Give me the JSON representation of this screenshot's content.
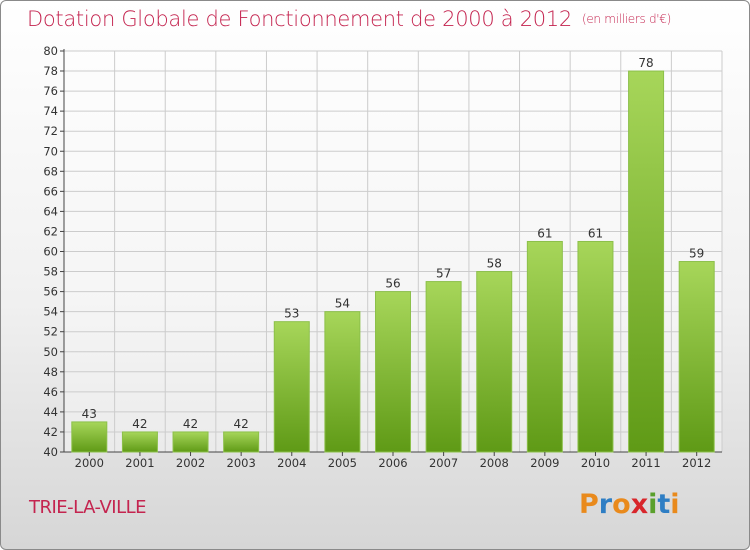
{
  "title": "Dotation Globale de Fonctionnement de 2000 à 2012",
  "unit": "(en milliers d'€)",
  "commune": "TRIE-LA-VILLE",
  "logo": {
    "text": "Proxiti",
    "letter_colors": [
      "#e98a1c",
      "#2e7ec4",
      "#e98a1c",
      "#d8262b",
      "#5aa02c",
      "#2e7ec4",
      "#e98a1c"
    ]
  },
  "colors": {
    "title": "#c4244f",
    "bar_top": "#a7d65a",
    "bar_bottom": "#5f9a16",
    "grid": "#cccccc"
  },
  "chart_data": {
    "type": "bar",
    "title": "Dotation Globale de Fonctionnement de 2000 à 2012",
    "xlabel": "",
    "ylabel": "",
    "categories": [
      "2000",
      "2001",
      "2002",
      "2003",
      "2004",
      "2005",
      "2006",
      "2007",
      "2008",
      "2009",
      "2010",
      "2011",
      "2012"
    ],
    "values": [
      43,
      42,
      42,
      42,
      53,
      54,
      56,
      57,
      58,
      61,
      61,
      78,
      59
    ],
    "ylim": [
      40,
      80
    ],
    "ytick_step": 2,
    "grid": true
  }
}
